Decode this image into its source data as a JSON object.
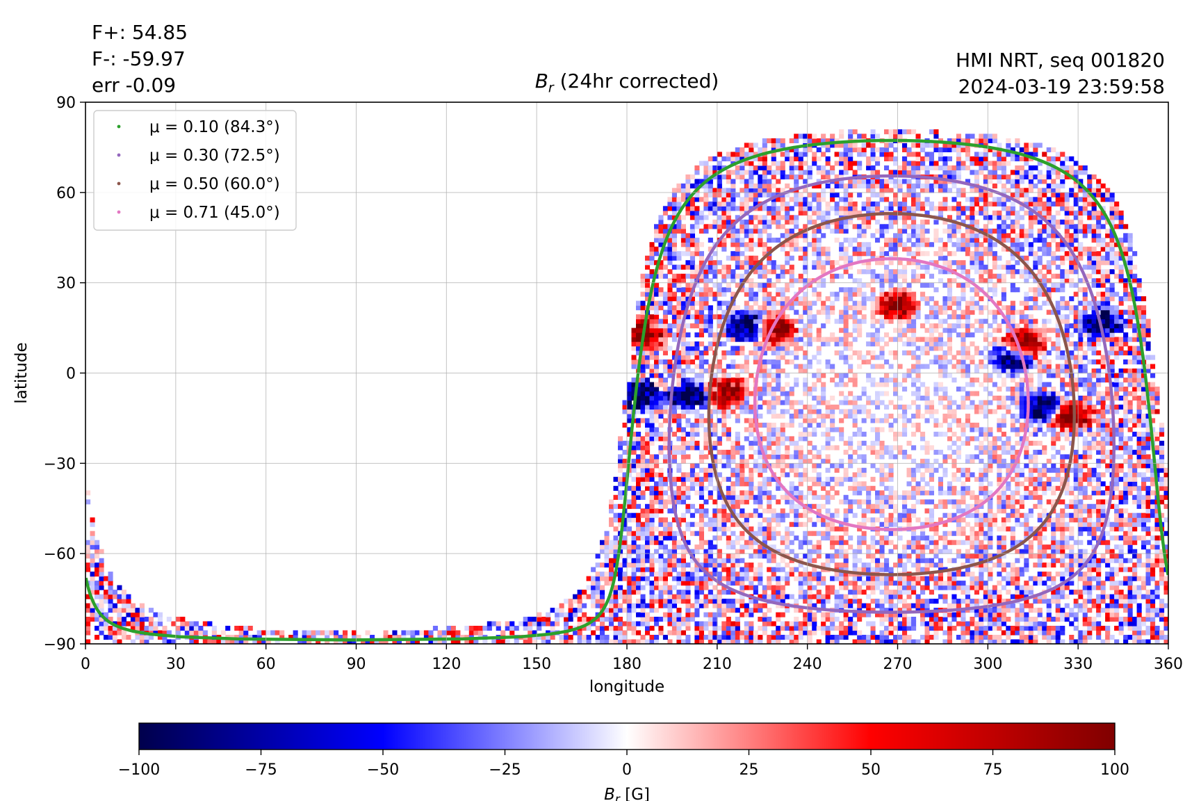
{
  "header": {
    "f_plus": "F+: 54.85",
    "f_minus": "F-: -59.97",
    "err": "err -0.09",
    "instrument": "HMI NRT, seq 001820",
    "timestamp": "2024-03-19 23:59:58"
  },
  "chart_data": {
    "type": "heatmap",
    "title": "B_r (24hr corrected)",
    "title_symbol": "B",
    "title_subscript": "r",
    "title_rest": " (24hr corrected)",
    "xlabel": "longitude",
    "ylabel": "latitude",
    "xlim": [
      0,
      360
    ],
    "ylim": [
      -90,
      90
    ],
    "xticks": [
      0,
      30,
      60,
      90,
      120,
      150,
      180,
      210,
      240,
      270,
      300,
      330,
      360
    ],
    "yticks": [
      -90,
      -60,
      -30,
      0,
      30,
      60,
      90
    ],
    "ytick_labels": [
      "−90",
      "−60",
      "−30",
      "0",
      "30",
      "60",
      "90"
    ],
    "grid": true,
    "legend_position": "top-left",
    "legend": [
      {
        "label": "μ = 0.10 (84.3°)",
        "color": "#2ca02c"
      },
      {
        "label": "μ = 0.30 (72.5°)",
        "color": "#9467bd"
      },
      {
        "label": "μ = 0.50 (60.0°)",
        "color": "#8c564b"
      },
      {
        "label": "μ = 0.71 (45.0°)",
        "color": "#e377c2"
      }
    ],
    "disk_center": {
      "lon": 268,
      "lat": -7
    },
    "contours": [
      {
        "name": "μ = 0.10 (84.3°)",
        "angle_deg": 84.3,
        "color": "#2ca02c"
      },
      {
        "name": "μ = 0.30 (72.5°)",
        "angle_deg": 72.5,
        "color": "#9467bd"
      },
      {
        "name": "μ = 0.50 (60.0°)",
        "angle_deg": 60.0,
        "color": "#8c564b"
      },
      {
        "name": "μ = 0.71 (45.0°)",
        "angle_deg": 45.0,
        "color": "#e377c2"
      }
    ],
    "active_regions": [
      {
        "lon": 219,
        "lat": 15,
        "polarity": "negative"
      },
      {
        "lon": 229,
        "lat": 14,
        "polarity": "positive"
      },
      {
        "lon": 200,
        "lat": -8,
        "polarity": "negative"
      },
      {
        "lon": 212,
        "lat": -7,
        "polarity": "positive"
      },
      {
        "lon": 184,
        "lat": -8,
        "polarity": "negative"
      },
      {
        "lon": 185,
        "lat": 13,
        "polarity": "positive"
      },
      {
        "lon": 317,
        "lat": -12,
        "polarity": "negative"
      },
      {
        "lon": 327,
        "lat": -15,
        "polarity": "positive"
      },
      {
        "lon": 307,
        "lat": 4,
        "polarity": "negative"
      },
      {
        "lon": 311,
        "lat": 9,
        "polarity": "positive"
      },
      {
        "lon": 269,
        "lat": 22,
        "polarity": "positive"
      },
      {
        "lon": 337,
        "lat": 16,
        "polarity": "negative"
      }
    ],
    "colorbar": {
      "label": "B_r [G]",
      "label_symbol": "B",
      "label_subscript": "r",
      "label_rest": " [G]",
      "min": -100,
      "max": 100,
      "ticks": [
        -100,
        -75,
        -50,
        -25,
        0,
        25,
        50,
        75,
        100
      ],
      "tick_labels": [
        "−100",
        "−75",
        "−50",
        "−25",
        "0",
        "25",
        "50",
        "75",
        "100"
      ],
      "colormap": "seismic",
      "colors": [
        "#00004c",
        "#0000ff",
        "#ffffff",
        "#ff0000",
        "#800000"
      ]
    }
  }
}
